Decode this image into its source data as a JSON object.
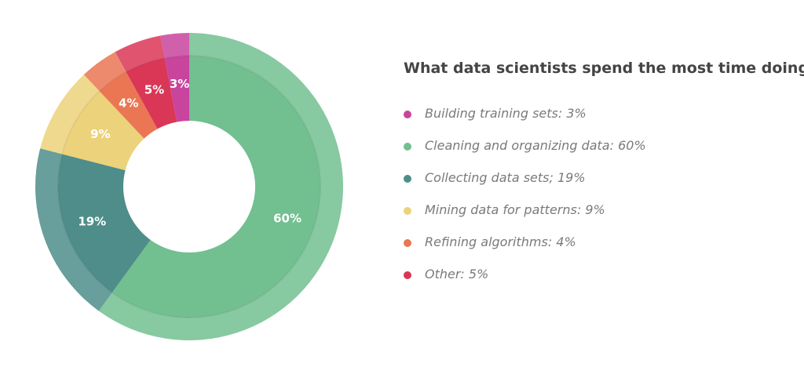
{
  "chart_data": {
    "type": "pie",
    "title": "What data scientists spend the most time doing",
    "slices": [
      {
        "legend": "Building training sets: 3%",
        "label": "3%",
        "value": 3,
        "color": "#c9449d"
      },
      {
        "legend": "Cleaning and organizing data: 60%",
        "label": "60%",
        "value": 60,
        "color": "#72bf90"
      },
      {
        "legend": "Collecting data sets; 19%",
        "label": "19%",
        "value": 19,
        "color": "#4e8d89"
      },
      {
        "legend": "Mining data for patterns: 9%",
        "label": "9%",
        "value": 9,
        "color": "#ecd27a"
      },
      {
        "legend": "Refining algorithms: 4%",
        "label": "4%",
        "value": 4,
        "color": "#ea7653"
      },
      {
        "legend": "Other: 5%",
        "label": "5%",
        "value": 5,
        "color": "#da3656"
      }
    ],
    "legend_position": "right"
  }
}
